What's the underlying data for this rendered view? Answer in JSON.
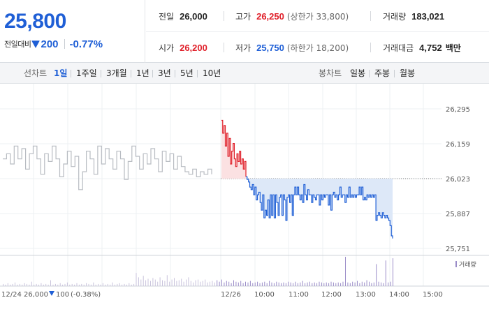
{
  "summary": {
    "price": "25,800",
    "change_label": "전일대비",
    "change_value": "200",
    "change_rate": "-0.77%",
    "prev_close_label": "전일",
    "prev_close": "26,000",
    "high_label": "고가",
    "high": "26,250",
    "upper_limit": "(상한가 33,800)",
    "volume_label": "거래량",
    "volume": "183,021",
    "open_label": "시가",
    "open": "26,200",
    "low_label": "저가",
    "low": "25,750",
    "lower_limit": "(하한가 18,200)",
    "amount_label": "거래대금",
    "amount": "4,752",
    "amount_unit": "백만"
  },
  "toolbar": {
    "line_label": "선차트",
    "periods": [
      "1일",
      "1주일",
      "3개월",
      "1년",
      "3년",
      "5년",
      "10년"
    ],
    "active_period": "1일",
    "candle_label": "봉차트",
    "candles": [
      "일봉",
      "주봉",
      "월봉"
    ]
  },
  "colors": {
    "up": "#e0202a",
    "down": "#1f5fd6",
    "prev_day_line": "#b8bcc2",
    "volume": "#9a8cc8"
  },
  "chart_data": {
    "type": "line",
    "y_ticks": [
      "26,295",
      "26,159",
      "26,023",
      "25,887",
      "25,751"
    ],
    "y_tick_values": [
      26295,
      26159,
      26023,
      25887,
      25751
    ],
    "ylim": [
      25751,
      26295
    ],
    "reference_value": 26023,
    "x_ticks": [
      "12/26",
      "10:00",
      "11:00",
      "12:00",
      "13:00",
      "14:00",
      "15:00"
    ],
    "prev_day_date": "12/24",
    "prev_day_close": "26,000",
    "prev_day_change": "100",
    "prev_day_rate": "(-0.38%)",
    "volume_legend": "거래량",
    "series": [
      {
        "values": [
          26100,
          26120,
          26080,
          26150,
          26100,
          26140,
          26060,
          26120,
          26150,
          26100,
          26040,
          26120,
          26090,
          26150,
          26100,
          26030,
          26080,
          26130,
          26070,
          26110,
          25980,
          26050,
          26130,
          26100,
          26040,
          26150,
          26080,
          26140,
          26100,
          26060,
          26130,
          26100,
          26020,
          26090,
          26150,
          26110,
          26060,
          26120,
          26080,
          26140,
          26100,
          26050,
          26130,
          26090,
          26120,
          26060,
          26110,
          26070,
          26050,
          26040,
          26060,
          26030,
          26050,
          26040,
          26060,
          26040
        ]
      },
      {
        "values": [
          26250,
          26200,
          26230,
          26150,
          26200,
          26110,
          26180,
          26080,
          26130,
          26160,
          26100,
          26070,
          26120,
          26090,
          26130,
          26080,
          26100,
          26060,
          26090,
          26030,
          26020,
          26010,
          25990,
          25980,
          26000,
          25960,
          25990,
          25940,
          25960,
          25970,
          25930,
          25900,
          25960,
          25870,
          25900,
          25880,
          25940,
          25870,
          25960,
          25880,
          25960,
          25870,
          25960,
          25930,
          25880,
          25950,
          25960,
          25880,
          25960,
          25940,
          25860,
          25950,
          25960,
          25930,
          25960,
          25880,
          25960,
          25990,
          25960,
          25990,
          25960,
          25940,
          25960,
          25930,
          26000,
          25960,
          25940,
          25980,
          25960,
          25960,
          25930,
          25960,
          25950,
          25940,
          25960,
          25960,
          25920,
          25960,
          25940,
          25960,
          25950,
          25960,
          25960,
          25920,
          25960,
          25900,
          25960,
          25970,
          25950,
          25960,
          25940,
          25960,
          25990,
          25950,
          25960,
          25960,
          25930,
          25960,
          25950,
          25990,
          25950,
          25960,
          25950,
          25960,
          25950,
          25960,
          25960,
          25990,
          25960,
          25990,
          25940,
          25950,
          25940,
          25960,
          25950,
          25960,
          25950,
          25960,
          25950,
          25960,
          25860,
          25880,
          25890,
          25880,
          25870,
          25890,
          25880,
          25870,
          25880,
          25870,
          25860,
          25840,
          25800,
          25790
        ]
      }
    ],
    "volume_values": [
      3,
      2,
      4,
      2,
      3,
      5,
      2,
      3,
      2,
      4,
      3,
      2,
      6,
      2,
      3,
      2,
      4,
      2,
      3,
      2,
      8,
      2,
      3,
      2,
      4,
      2,
      3,
      5,
      2,
      3,
      2,
      4,
      2,
      3,
      2,
      4,
      3,
      2,
      5,
      2,
      3,
      2,
      4,
      2,
      3,
      2,
      5,
      2,
      3,
      4,
      2,
      3,
      2,
      4,
      2,
      3,
      18,
      12,
      9,
      14,
      8,
      10,
      7,
      11,
      9,
      6,
      12,
      8,
      7,
      15,
      6,
      9,
      11,
      7,
      8,
      10,
      6,
      9,
      12,
      7,
      5,
      8,
      9,
      6,
      7,
      9,
      5,
      6,
      7,
      5,
      8,
      6,
      9,
      5,
      7,
      6,
      4,
      8,
      6,
      5,
      7,
      4,
      6,
      5,
      7,
      4,
      5,
      6,
      4,
      5,
      6,
      4,
      7,
      5,
      4,
      6,
      5,
      4,
      5,
      4,
      6,
      5,
      4,
      6,
      4,
      5,
      7,
      4,
      5,
      6,
      4,
      5,
      4,
      6,
      5,
      4,
      5,
      4,
      6,
      5,
      4,
      5,
      4,
      6,
      40,
      5,
      4,
      6,
      5,
      7,
      4,
      6,
      5,
      8,
      6,
      4,
      5,
      30,
      6,
      5,
      4,
      35,
      5,
      6,
      38
    ]
  }
}
